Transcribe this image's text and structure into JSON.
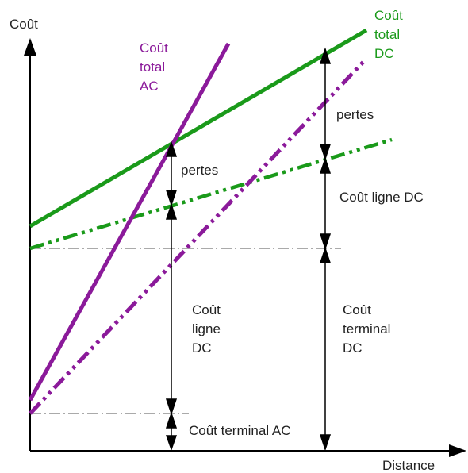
{
  "axes": {
    "y_label": "Coût",
    "x_label": "Distance"
  },
  "curves": {
    "ac_total": [
      "Coût",
      "total",
      "AC"
    ],
    "dc_total": [
      "Coût",
      "total",
      "DC"
    ]
  },
  "annotations": {
    "losses_ac": "pertes",
    "losses_dc": "pertes",
    "line_cost_dc_inline": "Coût ligne DC",
    "line_cost_dc_stacked": [
      "Coût",
      "ligne",
      "DC"
    ],
    "terminal_cost_dc": [
      "Coût",
      "terminal",
      "DC"
    ],
    "terminal_cost_ac": "Coût terminal AC"
  },
  "colors": {
    "ac": "#8B1A9A",
    "dc": "#1A9A1A",
    "axis": "#000000",
    "guide": "#777777"
  }
}
